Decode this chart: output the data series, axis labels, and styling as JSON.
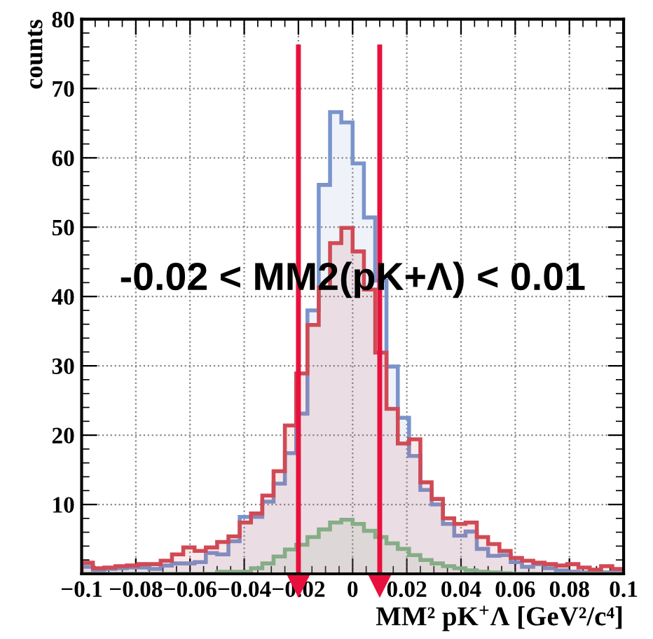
{
  "chart_data": {
    "type": "histogram",
    "xlabel": "MM² pK$^{+}$Λ [GeV²/c⁴]",
    "ylabel": "counts",
    "bins": [
      -0.1,
      -0.09583,
      -0.09167,
      -0.0875,
      -0.08333,
      -0.07917,
      -0.075,
      -0.07083,
      -0.06667,
      -0.0625,
      -0.05833,
      -0.05417,
      -0.05,
      -0.04583,
      -0.04167,
      -0.0375,
      -0.03333,
      -0.02917,
      -0.025,
      -0.02083,
      -0.01667,
      -0.0125,
      -0.00833,
      -0.00417,
      0,
      0.00417,
      0.00833,
      0.0125,
      0.01667,
      0.02083,
      0.025,
      0.02917,
      0.03333,
      0.0375,
      0.04167,
      0.04583,
      0.05,
      0.05417,
      0.05833,
      0.0625,
      0.06667,
      0.07083,
      0.075,
      0.07917,
      0.08333,
      0.0875,
      0.09167,
      0.09583,
      0.1
    ],
    "series": [
      {
        "color": "#7a94cc",
        "values": [
          1.0,
          0.5,
          0.7,
          0.8,
          0.9,
          0.9,
          0.7,
          1.2,
          1.5,
          1.5,
          1.7,
          3.0,
          2.8,
          4.7,
          8.2,
          8.2,
          10.4,
          13.0,
          17.4,
          23.1,
          38,
          56.1,
          66.6,
          65.1,
          59.2,
          51.4,
          42.3,
          29.9,
          22.5,
          17.0,
          12.1,
          10.0,
          7.2,
          5.5,
          6.1,
          3.6,
          2.6,
          2.7,
          1.7,
          1.0,
          1.4,
          0.8,
          0.5,
          0.3,
          0.2,
          0.4,
          0.2,
          0.2
        ]
      },
      {
        "color": "#d04a55",
        "values": [
          1.6,
          0.8,
          0.9,
          1.1,
          1.2,
          1.4,
          1.4,
          1.9,
          2.8,
          3.8,
          3.3,
          3.8,
          4.6,
          5.4,
          7.4,
          8.7,
          11.3,
          14.8,
          21.4,
          28.9,
          35.9,
          41.3,
          47.7,
          49.9,
          46.5,
          41.0,
          31.9,
          23.8,
          18.8,
          19.4,
          13.2,
          10.8,
          8.0,
          7.2,
          7.4,
          5.3,
          4.3,
          3.3,
          2.3,
          1.9,
          1.6,
          1.4,
          1.2,
          1.4,
          0.9,
          0.6,
          1.1,
          0.7
        ]
      },
      {
        "color": "#86ad86",
        "values": [
          0,
          0,
          0,
          0,
          0,
          0,
          0,
          0,
          0,
          0,
          0,
          0,
          0.3,
          0.3,
          0.3,
          0.8,
          1.5,
          2.5,
          3.5,
          4.2,
          5.3,
          6.4,
          7.4,
          7.8,
          7.2,
          6.2,
          5.3,
          4.4,
          3.6,
          2.7,
          2.0,
          1.5,
          1.1,
          0.8,
          0.5,
          0.3,
          0.2,
          0.1,
          0,
          0,
          0,
          0,
          0,
          0,
          0,
          0,
          0,
          0
        ]
      }
    ],
    "xlim": [
      -0.1,
      0.1
    ],
    "ylim": [
      0,
      80
    ],
    "xticks": [
      {
        "value": -0.1,
        "label": "−0.1"
      },
      {
        "value": -0.08,
        "label": "−0.08"
      },
      {
        "value": -0.06,
        "label": "−0.06"
      },
      {
        "value": -0.04,
        "label": "−0.04"
      },
      {
        "value": -0.02,
        "label": "−0.02"
      },
      0,
      0.02,
      0.04,
      0.06,
      0.08,
      0.1
    ],
    "yticks": [
      10,
      20,
      30,
      40,
      50,
      60,
      70,
      80
    ],
    "grid": true,
    "line_style": "dotted",
    "ref_lines": [
      {
        "axis": "x",
        "value": -0.02,
        "color": "#e8103c"
      },
      {
        "axis": "x",
        "value": 0.01,
        "color": "#e8103c"
      }
    ],
    "annotations": [
      "-0.02 < MM2(pK+Λ) < 0.01"
    ]
  }
}
